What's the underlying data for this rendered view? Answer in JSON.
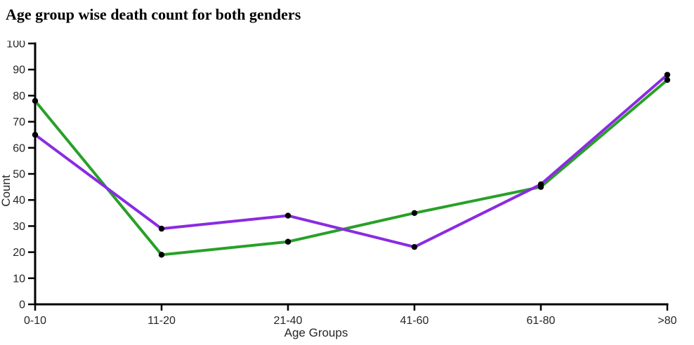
{
  "title": "Age group wise death count for both genders",
  "chart_data": {
    "type": "line",
    "title": "Age group wise death count for both genders",
    "categories": [
      "0-10",
      "11-20",
      "21-40",
      "41-60",
      "61-80",
      ">80"
    ],
    "series": [
      {
        "name": "green",
        "color": "#28A028",
        "values": [
          78,
          19,
          24,
          35,
          45,
          86
        ]
      },
      {
        "name": "purple",
        "color": "#8A2BE2",
        "values": [
          65,
          29,
          34,
          22,
          46,
          88
        ]
      }
    ],
    "xlabel": "Age Groups",
    "ylabel": "Count",
    "ylim": [
      0,
      100
    ],
    "yticks": [
      0,
      10,
      20,
      30,
      40,
      50,
      60,
      70,
      80,
      90,
      100
    ],
    "grid": false,
    "legend": "none",
    "marker": {
      "shape": "circle",
      "color": "#000000"
    },
    "axis_color": "#000000",
    "tick_label_color": "#262626",
    "background": "#FFFFFF"
  }
}
